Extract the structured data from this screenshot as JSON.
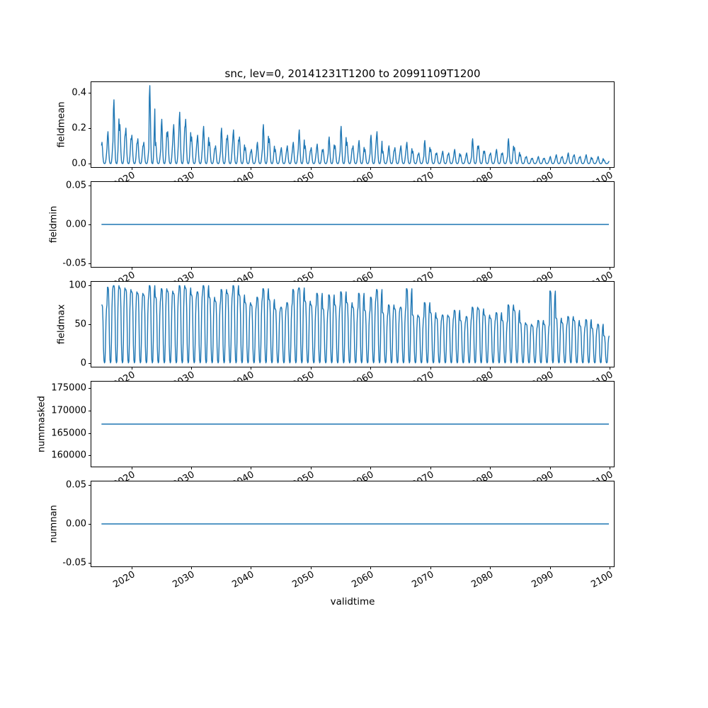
{
  "figure": {
    "title": "snc, lev=0, 20141231T1200 to 20991109T1200",
    "xlabel": "validtime",
    "line_color": "#1f77b4",
    "background": "#ffffff"
  },
  "x_axis": {
    "xlim": [
      2013.3,
      2100.7
    ],
    "xticks": [
      2020,
      2030,
      2040,
      2050,
      2060,
      2070,
      2080,
      2090,
      2100
    ],
    "xtick_labels": [
      "2020",
      "2030",
      "2040",
      "2050",
      "2060",
      "2070",
      "2080",
      "2090",
      "2100"
    ]
  },
  "chart_data": [
    {
      "type": "line",
      "title": "",
      "ylabel": "fieldmean",
      "ylim": [
        -0.02,
        0.46
      ],
      "yticks": [
        0.0,
        0.2,
        0.4
      ],
      "ytick_labels": [
        "0.0",
        "0.2",
        "0.4"
      ],
      "grid": false,
      "legend": "none",
      "series": {
        "name": "fieldmean",
        "mode": "annual_cycle",
        "start_year": 2015,
        "months_per_year": 12,
        "waveform": [
          0.85,
          1.0,
          0.7,
          0.3,
          0.08,
          0.01,
          0.0,
          0.0,
          0.05,
          0.2,
          0.45,
          0.7
        ],
        "annual_peaks": [
          0.12,
          0.18,
          0.36,
          0.22,
          0.2,
          0.16,
          0.14,
          0.12,
          0.44,
          0.12,
          0.25,
          0.18,
          0.22,
          0.29,
          0.25,
          0.15,
          0.16,
          0.21,
          0.12,
          0.1,
          0.2,
          0.16,
          0.19,
          0.15,
          0.09,
          0.08,
          0.12,
          0.22,
          0.14,
          0.08,
          0.09,
          0.1,
          0.12,
          0.19,
          0.1,
          0.09,
          0.11,
          0.08,
          0.15,
          0.1,
          0.21,
          0.12,
          0.1,
          0.13,
          0.08,
          0.16,
          0.18,
          0.07,
          0.1,
          0.09,
          0.1,
          0.12,
          0.07,
          0.06,
          0.13,
          0.08,
          0.06,
          0.07,
          0.06,
          0.08,
          0.05,
          0.06,
          0.14,
          0.1,
          0.07,
          0.06,
          0.08,
          0.06,
          0.14,
          0.09,
          0.05,
          0.04,
          0.03,
          0.04,
          0.03,
          0.04,
          0.05,
          0.04,
          0.06,
          0.05,
          0.04,
          0.05,
          0.03,
          0.04,
          0.02
        ]
      }
    },
    {
      "type": "line",
      "title": "",
      "ylabel": "fieldmin",
      "ylim": [
        -0.055,
        0.055
      ],
      "yticks": [
        -0.05,
        0.0,
        0.05
      ],
      "ytick_labels": [
        "-0.05",
        "0.00",
        "0.05"
      ],
      "grid": false,
      "legend": "none",
      "series": {
        "name": "fieldmin",
        "mode": "constant",
        "value": 0.0,
        "x_start": 2015.0,
        "x_end": 2099.87
      }
    },
    {
      "type": "line",
      "title": "",
      "ylabel": "fieldmax",
      "ylim": [
        -5,
        105
      ],
      "yticks": [
        0,
        50,
        100
      ],
      "ytick_labels": [
        "0",
        "50",
        "100"
      ],
      "grid": false,
      "legend": "none",
      "series": {
        "name": "fieldmax",
        "mode": "annual_cycle",
        "start_year": 2015,
        "months_per_year": 12,
        "waveform": [
          1.0,
          1.0,
          0.97,
          0.72,
          0.25,
          0.04,
          0.0,
          0.02,
          0.28,
          0.72,
          0.93,
          1.0
        ],
        "annual_peaks": [
          75,
          98,
          100,
          97,
          95,
          92,
          90,
          88,
          100,
          85,
          96,
          93,
          90,
          100,
          97,
          88,
          92,
          100,
          85,
          80,
          95,
          90,
          100,
          88,
          78,
          75,
          85,
          96,
          82,
          70,
          72,
          78,
          95,
          97,
          80,
          75,
          90,
          70,
          88,
          75,
          92,
          78,
          72,
          90,
          68,
          85,
          95,
          65,
          75,
          70,
          72,
          96,
          62,
          60,
          78,
          65,
          58,
          62,
          60,
          68,
          55,
          60,
          72,
          70,
          62,
          58,
          65,
          55,
          75,
          68,
          52,
          50,
          48,
          55,
          50,
          93,
          58,
          52,
          60,
          55,
          48,
          56,
          45,
          50,
          35
        ]
      }
    },
    {
      "type": "line",
      "title": "",
      "ylabel": "nummasked",
      "ylim": [
        157500,
        176500
      ],
      "yticks": [
        160000,
        165000,
        170000,
        175000
      ],
      "ytick_labels": [
        "160000",
        "165000",
        "170000",
        "175000"
      ],
      "grid": false,
      "legend": "none",
      "series": {
        "name": "nummasked",
        "mode": "constant",
        "value": 167000,
        "x_start": 2015.0,
        "x_end": 2099.87
      }
    },
    {
      "type": "line",
      "title": "",
      "ylabel": "numnan",
      "ylim": [
        -0.055,
        0.055
      ],
      "yticks": [
        -0.05,
        0.0,
        0.05
      ],
      "ytick_labels": [
        "-0.05",
        "0.00",
        "0.05"
      ],
      "grid": false,
      "legend": "none",
      "series": {
        "name": "numnan",
        "mode": "constant",
        "value": 0.0,
        "x_start": 2015.0,
        "x_end": 2099.87
      }
    }
  ]
}
